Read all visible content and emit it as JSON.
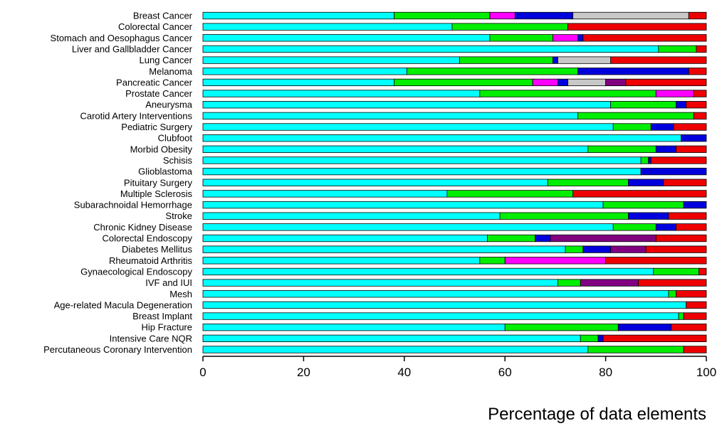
{
  "chart_data": {
    "type": "bar",
    "orientation": "horizontal",
    "stacked": true,
    "xlabel": "Percentage of data elements",
    "ylabel": "",
    "xlim": [
      0,
      100
    ],
    "xticks": [
      0,
      20,
      40,
      60,
      80,
      100
    ],
    "grid": false,
    "colors": [
      "#00FFFF",
      "#00EE00",
      "#FF00FF",
      "#0000DD",
      "#C8C8C8",
      "#800080",
      "#EE0000"
    ],
    "categories": [
      "Breast Cancer",
      "Colorectal Cancer",
      "Stomach and Oesophagus Cancer",
      "Liver and Gallbladder Cancer",
      "Lung Cancer",
      "Melanoma",
      "Pancreatic Cancer",
      "Prostate Cancer",
      "Aneurysma",
      "Carotid Artery Interventions",
      "Pediatric Surgery",
      "Clubfoot",
      "Morbid Obesity",
      "Schisis",
      "Glioblastoma",
      "Pituitary Surgery",
      "Multiple Sclerosis",
      "Subarachnoidal Hemorrhage",
      "Stroke",
      "Chronic Kidney Disease",
      "Colorectal Endoscopy",
      "Diabetes Mellitus",
      "Rheumatoid Arthritis",
      "Gynaecological Endoscopy",
      "IVF and IUI",
      "Mesh",
      "Age-related Macula Degeneration",
      "Breast Implant",
      "Hip Fracture",
      "Intensive Care NQR",
      "Percutaneous Coronary Intervention"
    ],
    "segments": [
      [
        38,
        19,
        5,
        11.5,
        23,
        0,
        3.5
      ],
      [
        49.5,
        23,
        0,
        0,
        0,
        0,
        27.5
      ],
      [
        57,
        12.5,
        5,
        1,
        0,
        0,
        24.5
      ],
      [
        90.5,
        7.5,
        0,
        0,
        0,
        0,
        2
      ],
      [
        51,
        18.5,
        0,
        1,
        10.5,
        0,
        19
      ],
      [
        40.5,
        34,
        0,
        22,
        0,
        0,
        3.5
      ],
      [
        38,
        27.5,
        5,
        2,
        7.5,
        4,
        16
      ],
      [
        55,
        35,
        7.5,
        0,
        0,
        0,
        2.5
      ],
      [
        81,
        13,
        0,
        2,
        0,
        0,
        4
      ],
      [
        74.5,
        23,
        0,
        0,
        0,
        0,
        2.5
      ],
      [
        81.5,
        7.5,
        0,
        4.5,
        0,
        0,
        6.5
      ],
      [
        95,
        0,
        0,
        5,
        0,
        0,
        0
      ],
      [
        76.5,
        13.5,
        0,
        4,
        0,
        0,
        6
      ],
      [
        87,
        1.5,
        0,
        0.5,
        0,
        0,
        11
      ],
      [
        87,
        0,
        0,
        13,
        0,
        0,
        0
      ],
      [
        68.5,
        16,
        0,
        7,
        0,
        0,
        8.5
      ],
      [
        48.5,
        25,
        0,
        0,
        0,
        0,
        26.5
      ],
      [
        79.5,
        16,
        0,
        4.5,
        0,
        0,
        0
      ],
      [
        59,
        25.5,
        0,
        8,
        0,
        0,
        7.5
      ],
      [
        81.5,
        8.5,
        0,
        4,
        0,
        0,
        6
      ],
      [
        56.5,
        9.5,
        0,
        3,
        0,
        21,
        10
      ],
      [
        72,
        3.5,
        0,
        5.5,
        0,
        7,
        12
      ],
      [
        55,
        5,
        20,
        0,
        0,
        0,
        20
      ],
      [
        89.5,
        9,
        0,
        0,
        0,
        0,
        1.5
      ],
      [
        70.5,
        4.5,
        0,
        0,
        0,
        11.5,
        13.5
      ],
      [
        92.5,
        1.5,
        0,
        0,
        0,
        0,
        6
      ],
      [
        96,
        0,
        0,
        0,
        0,
        0,
        4
      ],
      [
        94.5,
        1,
        0,
        0,
        0,
        0,
        4.5
      ],
      [
        60,
        22.5,
        0,
        10.5,
        0,
        0,
        7
      ],
      [
        75,
        3.5,
        0,
        1,
        0,
        0,
        20.5
      ],
      [
        76.5,
        19,
        0,
        0,
        0,
        0,
        4.5
      ]
    ]
  }
}
